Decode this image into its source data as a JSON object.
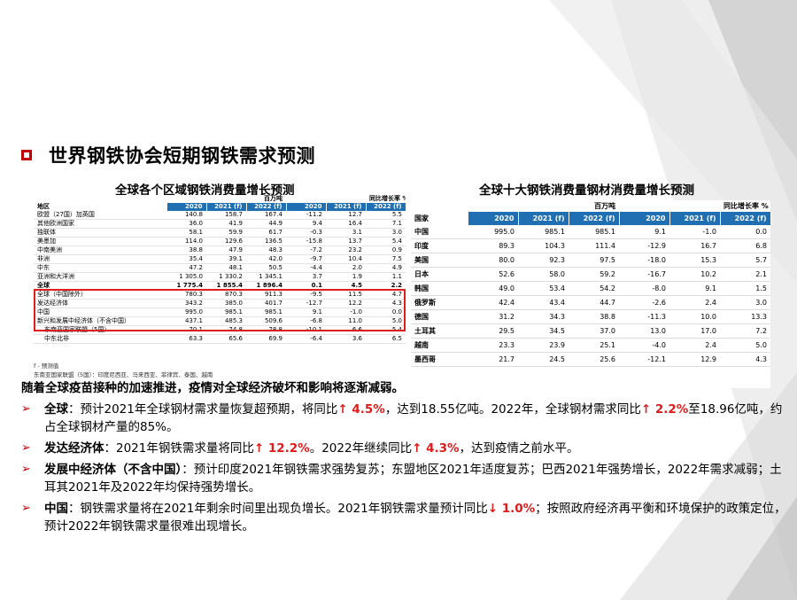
{
  "page": {
    "title": "世界钢铁协会短期钢铁需求预测",
    "colors": {
      "accent_red": "#c00000",
      "highlight_red": "#e01b1b",
      "table_blue": "#1f6fb2",
      "deco_gray": "#d9d9d9"
    }
  },
  "left_table": {
    "title": "全球各个区域钢铁消费量增长预测",
    "unit_mt": "百万吨",
    "unit_growth": "同比增长率 %",
    "header": [
      "地区",
      "2020",
      "2021 (f)",
      "2022 (f)",
      "2020",
      "2021 (f)",
      "2022 (f)"
    ],
    "rows": [
      {
        "label": "欧盟（27国）加英国",
        "v": [
          "140.8",
          "158.7",
          "167.4",
          "-11.2",
          "12.7",
          "5.5"
        ]
      },
      {
        "label": "其他欧洲国家",
        "v": [
          "36.0",
          "41.9",
          "44.9",
          "9.4",
          "16.4",
          "7.1"
        ]
      },
      {
        "label": "独联体",
        "v": [
          "58.1",
          "59.9",
          "61.7",
          "-0.3",
          "3.1",
          "3.0"
        ]
      },
      {
        "label": "美墨加",
        "v": [
          "114.0",
          "129.6",
          "136.5",
          "-15.8",
          "13.7",
          "5.4"
        ]
      },
      {
        "label": "中南美洲",
        "v": [
          "38.8",
          "47.9",
          "48.3",
          "-7.2",
          "23.2",
          "0.9"
        ]
      },
      {
        "label": "非洲",
        "v": [
          "35.4",
          "39.1",
          "42.0",
          "-9.7",
          "10.4",
          "7.5"
        ]
      },
      {
        "label": "中东",
        "v": [
          "47.2",
          "48.1",
          "50.5",
          "-4.4",
          "2.0",
          "4.9"
        ]
      },
      {
        "label": "亚洲和大洋洲",
        "v": [
          "1 305.0",
          "1 330.2",
          "1 345.1",
          "3.7",
          "1.9",
          "1.1"
        ]
      },
      {
        "label": "全球",
        "v": [
          "1 775.4",
          "1 855.4",
          "1 896.4",
          "0.1",
          "4.5",
          "2.2"
        ],
        "bold": true
      },
      {
        "label": "全球（中国除外）",
        "v": [
          "780.3",
          "870.3",
          "911.3",
          "-9.5",
          "11.5",
          "4.7"
        ]
      },
      {
        "label": "发达经济体",
        "v": [
          "343.2",
          "385.0",
          "401.7",
          "-12.7",
          "12.2",
          "4.3"
        ]
      },
      {
        "label": "中国",
        "v": [
          "995.0",
          "985.1",
          "985.1",
          "9.1",
          "-1.0",
          "0.0"
        ]
      },
      {
        "label": "新兴和发展中经济体（不含中国）",
        "v": [
          "437.1",
          "485.3",
          "509.6",
          "-6.8",
          "11.0",
          "5.0"
        ]
      },
      {
        "label": "东南亚国家联盟（5国）",
        "v": [
          "70.1",
          "74.8",
          "78.8",
          "-10.1",
          "6.6",
          "5.4"
        ],
        "sub": true
      },
      {
        "label": "中东北非",
        "v": [
          "63.3",
          "65.6",
          "69.9",
          "-6.4",
          "3.6",
          "6.5"
        ],
        "sub": true
      }
    ],
    "notes": [
      "f - 预测值",
      "东南亚国家联盟（5国）：印度尼西亚、马来西亚、菲律宾、泰国、越南"
    ]
  },
  "right_table": {
    "title": "全球十大钢铁消费量钢材消费量增长预测",
    "unit_mt": "百万吨",
    "unit_growth": "同比增长率 %",
    "header": [
      "国家",
      "2020",
      "2021 (f)",
      "2022 (f)",
      "2020",
      "2021 (f)",
      "2022 (f)"
    ],
    "rows": [
      {
        "label": "中国",
        "v": [
          "995.0",
          "985.1",
          "985.1",
          "9.1",
          "-1.0",
          "0.0"
        ]
      },
      {
        "label": "印度",
        "v": [
          "89.3",
          "104.3",
          "111.4",
          "-12.9",
          "16.7",
          "6.8"
        ]
      },
      {
        "label": "美国",
        "v": [
          "80.0",
          "92.3",
          "97.5",
          "-18.0",
          "15.3",
          "5.7"
        ]
      },
      {
        "label": "日本",
        "v": [
          "52.6",
          "58.0",
          "59.2",
          "-16.7",
          "10.2",
          "2.1"
        ]
      },
      {
        "label": "韩国",
        "v": [
          "49.0",
          "53.4",
          "54.2",
          "-8.0",
          "9.1",
          "1.5"
        ]
      },
      {
        "label": "俄罗斯",
        "v": [
          "42.4",
          "43.4",
          "44.7",
          "-2.6",
          "2.4",
          "3.0"
        ]
      },
      {
        "label": "德国",
        "v": [
          "31.2",
          "34.3",
          "38.8",
          "-11.3",
          "10.0",
          "13.3"
        ]
      },
      {
        "label": "土耳其",
        "v": [
          "29.5",
          "34.5",
          "37.0",
          "13.0",
          "17.0",
          "7.2"
        ]
      },
      {
        "label": "越南",
        "v": [
          "23.3",
          "23.9",
          "25.1",
          "-4.0",
          "2.4",
          "5.0"
        ]
      },
      {
        "label": "墨西哥",
        "v": [
          "21.7",
          "24.5",
          "25.6",
          "-12.1",
          "12.9",
          "4.3"
        ]
      }
    ]
  },
  "body": {
    "intro": "随着全球疫苗接种的加速推进，疫情对全球经济破坏和影响将逐渐减弱。",
    "bullets": [
      {
        "label": "全球",
        "parts": [
          {
            "t": "：预计2021年全球钢材需求量恢复超预期，将同比"
          },
          {
            "t": "↑ 4.5%",
            "red": true
          },
          {
            "t": "，达到18.55亿吨。2022年，全球钢材需求同比"
          },
          {
            "t": "↑ 2.2%",
            "red": true
          },
          {
            "t": "至18.96亿吨，约占全球钢材产量的85%。"
          }
        ]
      },
      {
        "label": "发达经济体",
        "parts": [
          {
            "t": "：2021年钢铁需求量将同比"
          },
          {
            "t": "↑ 12.2%",
            "red": true
          },
          {
            "t": "。2022年继续同比"
          },
          {
            "t": "↑ 4.3%",
            "red": true
          },
          {
            "t": "，达到疫情之前水平。"
          }
        ]
      },
      {
        "label": "发展中经济体（不含中国）",
        "parts": [
          {
            "t": "：预计印度2021年钢铁需求强势复苏；东盟地区2021年适度复苏；巴西2021年强势增长，2022年需求减弱；土耳其2021年及2022年均保持强势增长。"
          }
        ]
      },
      {
        "label": "中国",
        "parts": [
          {
            "t": "：钢铁需求量将在2021年剩余时间里出现负增长。2021年钢铁需求量预计同比"
          },
          {
            "t": "↓ 1.0%",
            "red": true
          },
          {
            "t": "；按照政府经济再平衡和环境保护的政策定位，预计2022年钢铁需求量很难出现增长。"
          }
        ]
      }
    ]
  }
}
